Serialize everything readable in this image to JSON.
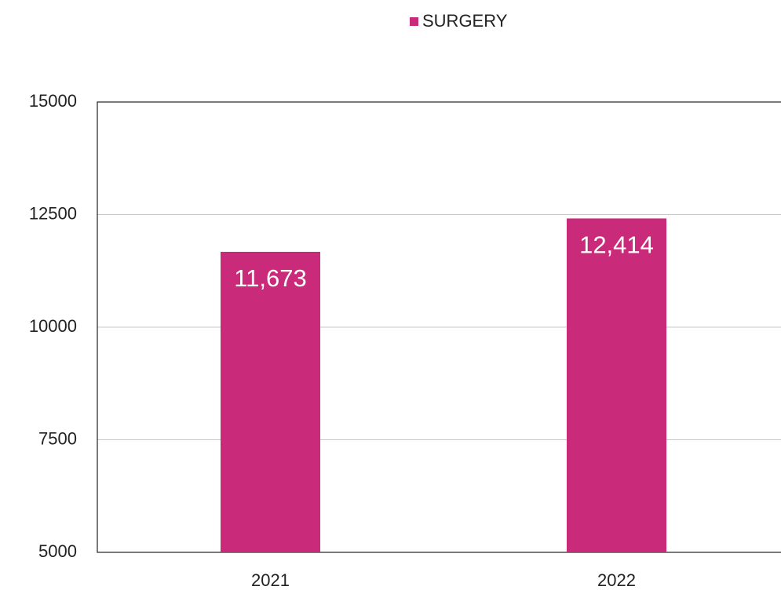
{
  "chart_data": {
    "type": "bar",
    "categories": [
      "2021",
      "2022"
    ],
    "series": [
      {
        "name": "SURGERY",
        "color": "#c92a7a",
        "values": [
          11673,
          12414
        ],
        "value_labels": [
          "11,673",
          "12,414"
        ]
      }
    ],
    "ylim": [
      5000,
      15000
    ],
    "yticks": [
      5000,
      7500,
      10000,
      12500,
      15000
    ],
    "grid": true,
    "legend": "top"
  }
}
